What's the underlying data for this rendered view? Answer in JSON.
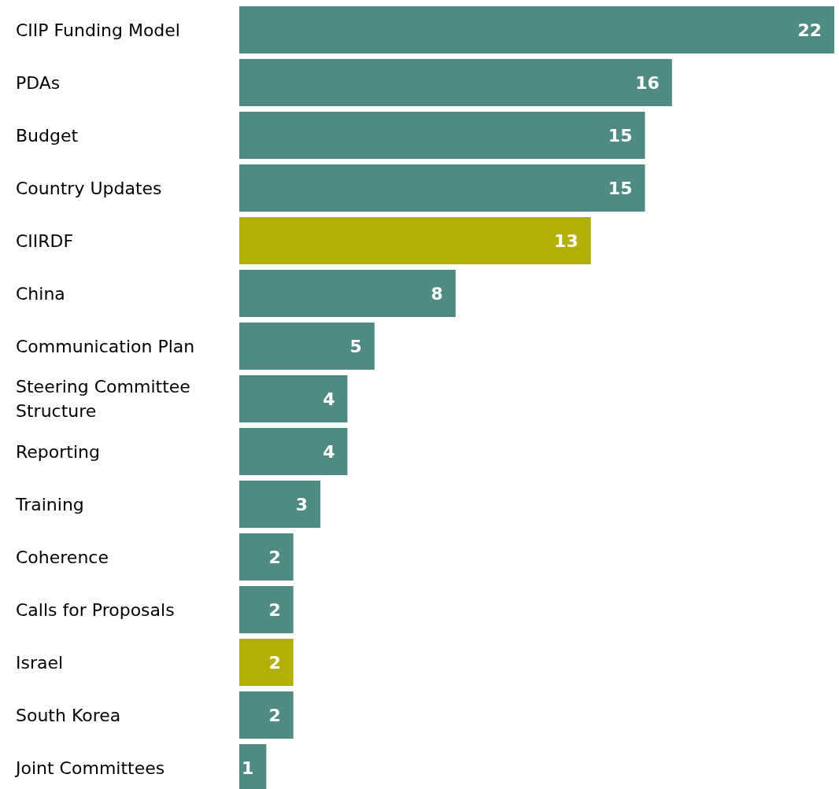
{
  "chart_data": {
    "type": "bar",
    "orientation": "horizontal",
    "data_labels": true,
    "tick_labels": "y",
    "categories": [
      "CIIP Funding Model",
      "PDAs",
      "Budget",
      "Country Updates",
      "CIIRDF",
      "China",
      "Communication Plan",
      "Steering Committee Structure",
      "Reporting",
      "Training",
      "Coherence",
      "Calls for Proposals",
      "Israel",
      "South Korea",
      "Joint Committees"
    ],
    "values": [
      22,
      16,
      15,
      15,
      13,
      8,
      5,
      4,
      4,
      3,
      2,
      2,
      2,
      2,
      1
    ],
    "colors": [
      "#508a85",
      "#508a85",
      "#508a85",
      "#508a85",
      "#b3b004",
      "#508a85",
      "#508a85",
      "#508a85",
      "#508a85",
      "#508a85",
      "#508a85",
      "#508a85",
      "#b3b004",
      "#508a85",
      "#508a85"
    ]
  }
}
